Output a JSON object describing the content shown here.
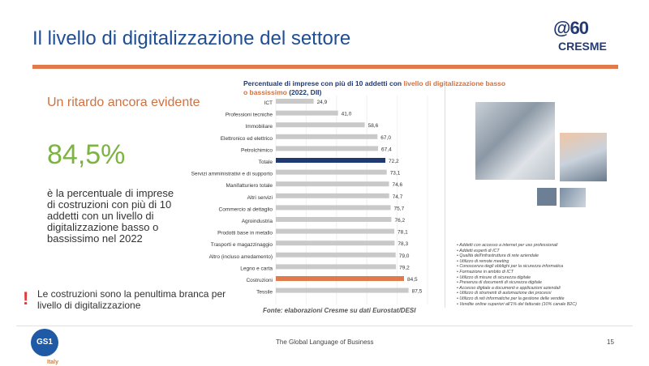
{
  "slide": {
    "title": "Il livello di digitalizzazione del settore",
    "subtitle": "Un ritardo ancora evidente",
    "big_number": "84,5%",
    "description": "è la percentuale di imprese di costruzioni con più di 10 addetti con un livello di digitalizzazione basso o bassissimo nel 2022",
    "warning_icon": "!",
    "warning_text": "Le costruzioni sono la penultima branca per livello di digitalizzazione",
    "page_number": "15"
  },
  "logos": {
    "cresme_mark": "@60",
    "cresme_name": "CRESME",
    "gs1_text": "GS1",
    "gs1_country": "Italy"
  },
  "footer": {
    "tagline": "The Global Language of Business"
  },
  "colors": {
    "title_blue": "#1f4e96",
    "accent_orange": "#e07a4a",
    "green": "#7cb342",
    "bar_default": "#c9c9c9",
    "bar_totale": "#1f3a73",
    "bar_costruzioni": "#e07a4a"
  },
  "chart_title": {
    "part1": "Percentuale di imprese con più di 10 addetti con ",
    "highlight": "livello di digitalizzazione basso o bassissimo",
    "part2": " (2022, DII)"
  },
  "chart_source": "Fonte: elaborazioni Cresme su dati Eurostat/DESI",
  "chart_data": {
    "type": "bar",
    "orientation": "horizontal",
    "categories": [
      "ICT",
      "Professioni tecniche",
      "Immobiliare",
      "Elettronico ed elettrico",
      "Petrolchimico",
      "Totale",
      "Servizi amministrativi e di supporto",
      "Manifatturiero totale",
      "Altri servizi",
      "Commercio al dettaglio",
      "Agroindustria",
      "Prodotti base in metallo",
      "Trasporti e magazzinaggio",
      "Altro (incluso arredamento)",
      "Legno e carta",
      "Costruzioni",
      "Tessile"
    ],
    "values": [
      24.9,
      41.0,
      58.6,
      67.0,
      67.4,
      72.2,
      73.1,
      74.6,
      74.7,
      75.7,
      76.2,
      78.1,
      78.3,
      79.0,
      79.2,
      84.5,
      87.5
    ],
    "value_labels": [
      "24,9",
      "41,0",
      "58,6",
      "67,0",
      "67,4",
      "72,2",
      "73,1",
      "74,6",
      "74,7",
      "75,7",
      "76,2",
      "78,1",
      "78,3",
      "79,0",
      "79,2",
      "84,5",
      "87,5"
    ],
    "highlight": {
      "Totale": "#1f3a73",
      "Costruzioni": "#e07a4a"
    },
    "xlim": [
      0,
      100
    ],
    "grid": true,
    "legend": false
  },
  "indicators": [
    "Addetti con accesso a internet per uso professionali",
    "Addetti esperti di ICT",
    "Qualità dell'infrastruttura di rete aziendale",
    "Utilizzo di remote meeting",
    "Conoscenza degli obblighi per la sicurezza informatica",
    "Formazione in ambito di ICT",
    "Utilizzo di misure di sicurezza digitale",
    "Presenza di documenti di sicurezza digitale",
    "Accesso digitale a documenti e applicazioni aziendali",
    "Utilizzo di strumenti di automazione dei processi",
    "Utilizzo di reti informatiche per la gestione delle vendite",
    "Vendite online superiori all'1% del fatturato (10% canale B2C)"
  ]
}
